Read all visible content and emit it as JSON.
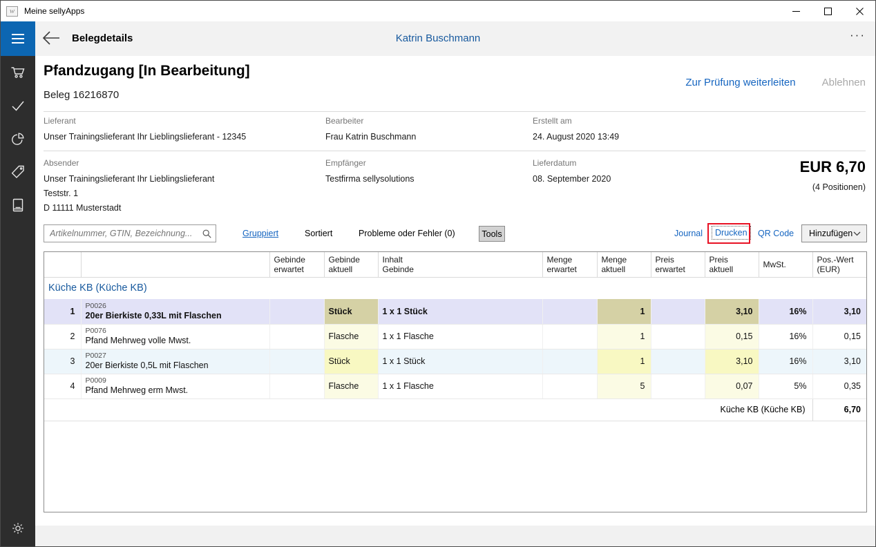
{
  "colors": {
    "accent_blue": "#0c66b2",
    "link_blue": "#1565c0",
    "heading_blue": "#17599e",
    "sidebar_bg": "#2d2d2d",
    "selected_row": "#e2e2f7",
    "tint_row": "#edf6fb",
    "khaki_cell": "#d5d1a5",
    "pale_cell": "#fbfbe4",
    "bright_cell": "#f8f8c2",
    "annotation_red": "#e81123"
  },
  "window": {
    "title": "Meine sellyApps"
  },
  "header": {
    "title": "Belegdetails",
    "user": "Katrin Buschmann",
    "more": "···"
  },
  "sidebar": {
    "items": [
      "cart",
      "check",
      "pie-chart",
      "tag",
      "book"
    ],
    "bottom": "gear"
  },
  "document": {
    "title": "Pfandzugang [In Bearbeitung]",
    "beleg": "Beleg 16216870",
    "forward": "Zur Prüfung weiterleiten",
    "reject": "Ablehnen",
    "info_row1": [
      {
        "label": "Lieferant",
        "value": "Unser Trainingslieferant Ihr Lieblingslieferant - 12345"
      },
      {
        "label": "Bearbeiter",
        "value": "Frau Katrin Buschmann"
      },
      {
        "label": "Erstellt am",
        "value": "24. August 2020 13:49"
      }
    ],
    "info_row2": [
      {
        "label": "Absender",
        "line1": "Unser Trainingslieferant Ihr Lieblingslieferant",
        "line2": "Teststr. 1",
        "line3": "D 11111 Musterstadt"
      },
      {
        "label": "Empfänger",
        "line1": "Testfirma sellysolutions"
      },
      {
        "label": "Lieferdatum",
        "line1": "08. September 2020"
      }
    ],
    "total": {
      "amount": "EUR 6,70",
      "positions": "(4 Positionen)"
    }
  },
  "toolbar": {
    "search_placeholder": "Artikelnummer, GTIN, Bezeichnung...",
    "gruppiert": "Gruppiert",
    "sortiert": "Sortiert",
    "probleme": "Probleme oder Fehler (0)",
    "tools": "Tools",
    "journal": "Journal",
    "drucken": "Drucken",
    "qr": "QR Code",
    "hinzufuegen": "Hinzufügen"
  },
  "table": {
    "columns": [
      {
        "l1": "",
        "l2": ""
      },
      {
        "l1": "",
        "l2": ""
      },
      {
        "l1": "Gebinde",
        "l2": "erwartet"
      },
      {
        "l1": "Gebinde",
        "l2": "aktuell"
      },
      {
        "l1": "Inhalt",
        "l2": "Gebinde"
      },
      {
        "l1": "Menge",
        "l2": "erwartet"
      },
      {
        "l1": "Menge",
        "l2": "aktuell"
      },
      {
        "l1": "Preis",
        "l2": "erwartet"
      },
      {
        "l1": "Preis",
        "l2": "aktuell"
      },
      {
        "l1": "MwSt.",
        "l2": ""
      },
      {
        "l1": "Pos.-Wert",
        "l2": "(EUR)"
      }
    ],
    "group": "Küche KB (Küche KB)",
    "rows": [
      {
        "num": "1",
        "code": "P0026",
        "name": "20er Bierkiste 0,33L mit Flaschen",
        "gebinde_erwartet": "",
        "gebinde_aktuell": "Stück",
        "inhalt": "1 x 1 Stück",
        "menge_erwartet": "",
        "menge_aktuell": "1",
        "preis_erwartet": "",
        "preis_aktuell": "3,10",
        "mwst": "16%",
        "wert": "3,10",
        "selected": true,
        "tint": false,
        "bright": false
      },
      {
        "num": "2",
        "code": "P0076",
        "name": "Pfand Mehrweg volle Mwst.",
        "gebinde_erwartet": "",
        "gebinde_aktuell": "Flasche",
        "inhalt": "1 x 1 Flasche",
        "menge_erwartet": "",
        "menge_aktuell": "1",
        "preis_erwartet": "",
        "preis_aktuell": "0,15",
        "mwst": "16%",
        "wert": "0,15",
        "selected": false,
        "tint": false,
        "bright": false
      },
      {
        "num": "3",
        "code": "P0027",
        "name": "20er Bierkiste 0,5L mit Flaschen",
        "gebinde_erwartet": "",
        "gebinde_aktuell": "Stück",
        "inhalt": "1 x 1 Stück",
        "menge_erwartet": "",
        "menge_aktuell": "1",
        "preis_erwartet": "",
        "preis_aktuell": "3,10",
        "mwst": "16%",
        "wert": "3,10",
        "selected": false,
        "tint": true,
        "bright": true
      },
      {
        "num": "4",
        "code": "P0009",
        "name": "Pfand Mehrweg erm Mwst.",
        "gebinde_erwartet": "",
        "gebinde_aktuell": "Flasche",
        "inhalt": "1 x 1 Flasche",
        "menge_erwartet": "",
        "menge_aktuell": "5",
        "preis_erwartet": "",
        "preis_aktuell": "0,07",
        "mwst": "5%",
        "wert": "0,35",
        "selected": false,
        "tint": false,
        "bright": false
      }
    ],
    "footer": {
      "label": "Küche KB (Küche KB)",
      "value": "6,70"
    }
  }
}
